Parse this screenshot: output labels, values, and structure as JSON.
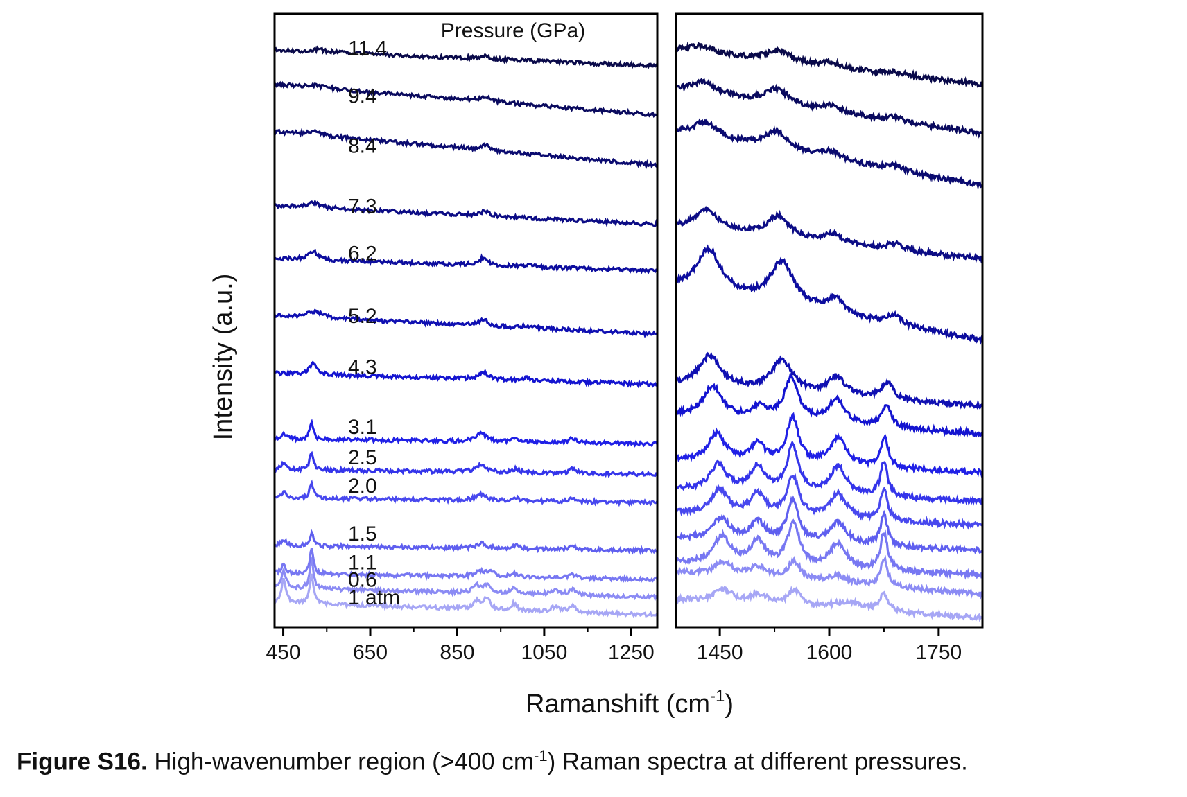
{
  "chart_data": {
    "type": "line",
    "xlabel_main": "Ramanshift (cm",
    "xlabel_sup": "-1",
    "xlabel_close": ")",
    "ylabel": "Intensity (a.u.)",
    "legend_title": "Pressure (GPa)",
    "left_panel": {
      "xlim": [
        430,
        1310
      ],
      "ticks": [
        "450",
        "650",
        "850",
        "1050",
        "1250"
      ],
      "tick_values": [
        450,
        650,
        850,
        1050,
        1250
      ]
    },
    "right_panel": {
      "xlim": [
        1390,
        1810
      ],
      "ticks": [
        "1450",
        "1600",
        "1750"
      ],
      "tick_values": [
        1450,
        1600,
        1750
      ]
    },
    "series": [
      {
        "name": "1 atm",
        "color": "#a6a6f5",
        "left_base": 0.98,
        "left_slope": 0.02,
        "right_base": 0.985,
        "right_slope": 0.03,
        "peaks_left": [
          [
            451,
            0.038,
            6
          ],
          [
            515,
            0.05,
            5
          ],
          [
            895,
            0.012,
            10
          ],
          [
            918,
            0.016,
            10
          ],
          [
            980,
            0.01,
            8
          ],
          [
            1075,
            0.008,
            10
          ],
          [
            1115,
            0.01,
            9
          ]
        ],
        "peaks_right": [
          [
            1455,
            0.02,
            15
          ],
          [
            1503,
            0.015,
            15
          ],
          [
            1552,
            0.026,
            10
          ],
          [
            1625,
            0.012,
            25
          ],
          [
            1675,
            0.03,
            6
          ]
        ]
      },
      {
        "name": "0.6",
        "color": "#8b8bf4",
        "left_base": 0.951,
        "left_slope": 0.015,
        "right_base": 0.946,
        "right_slope": 0.035,
        "peaks_left": [
          [
            451,
            0.03,
            6
          ],
          [
            515,
            0.05,
            5
          ],
          [
            895,
            0.012,
            10
          ],
          [
            918,
            0.012,
            10
          ],
          [
            980,
            0.01,
            8
          ],
          [
            1075,
            0.008,
            10
          ],
          [
            1115,
            0.01,
            9
          ]
        ],
        "peaks_right": [
          [
            1455,
            0.022,
            15
          ],
          [
            1503,
            0.017,
            15
          ],
          [
            1552,
            0.03,
            10
          ],
          [
            1612,
            0.012,
            18
          ],
          [
            1675,
            0.045,
            6
          ]
        ]
      },
      {
        "name": "1.1",
        "color": "#7777f2",
        "left_base": 0.922,
        "left_slope": 0.01,
        "right_base": 0.915,
        "right_slope": 0.02,
        "peaks_left": [
          [
            451,
            0.014,
            6
          ],
          [
            515,
            0.04,
            5
          ],
          [
            902,
            0.008,
            14
          ],
          [
            925,
            0.008,
            12
          ],
          [
            980,
            0.006,
            8
          ],
          [
            1115,
            0.006,
            9
          ]
        ],
        "peaks_right": [
          [
            1453,
            0.045,
            14
          ],
          [
            1502,
            0.04,
            12
          ],
          [
            1551,
            0.07,
            10
          ],
          [
            1612,
            0.04,
            14
          ],
          [
            1675,
            0.06,
            6
          ]
        ]
      },
      {
        "name": "1.5",
        "color": "#5f5fef",
        "left_base": 0.875,
        "left_slope": 0.008,
        "right_base": 0.875,
        "right_slope": 0.02,
        "peaks_left": [
          [
            451,
            0.01,
            6
          ],
          [
            515,
            0.022,
            5
          ],
          [
            905,
            0.008,
            14
          ],
          [
            985,
            0.005,
            8
          ],
          [
            1115,
            0.006,
            9
          ]
        ],
        "peaks_right": [
          [
            1452,
            0.035,
            14
          ],
          [
            1502,
            0.03,
            12
          ],
          [
            1550,
            0.065,
            10
          ],
          [
            1612,
            0.035,
            14
          ],
          [
            1675,
            0.05,
            6
          ]
        ]
      },
      {
        "name": "2.0",
        "color": "#4848ee",
        "left_base": 0.797,
        "left_slope": 0.008,
        "right_base": 0.834,
        "right_slope": 0.02,
        "peaks_left": [
          [
            451,
            0.01,
            6
          ],
          [
            515,
            0.026,
            5
          ],
          [
            905,
            0.01,
            14
          ],
          [
            985,
            0.005,
            8
          ],
          [
            1115,
            0.006,
            9
          ]
        ],
        "peaks_right": [
          [
            1450,
            0.04,
            14
          ],
          [
            1502,
            0.035,
            12
          ],
          [
            1550,
            0.065,
            10
          ],
          [
            1612,
            0.04,
            14
          ],
          [
            1675,
            0.05,
            6
          ]
        ]
      },
      {
        "name": "2.5",
        "color": "#3434ea",
        "left_base": 0.751,
        "left_slope": 0.008,
        "right_base": 0.795,
        "right_slope": 0.02,
        "peaks_left": [
          [
            451,
            0.012,
            6
          ],
          [
            515,
            0.03,
            5
          ],
          [
            905,
            0.012,
            14
          ],
          [
            985,
            0.006,
            8
          ],
          [
            1115,
            0.007,
            9
          ]
        ],
        "peaks_right": [
          [
            1448,
            0.042,
            14
          ],
          [
            1502,
            0.04,
            12
          ],
          [
            1550,
            0.075,
            10
          ],
          [
            1612,
            0.045,
            14
          ],
          [
            1675,
            0.055,
            6
          ]
        ]
      },
      {
        "name": "3.1",
        "color": "#2020e6",
        "left_base": 0.701,
        "left_slope": 0.008,
        "right_base": 0.748,
        "right_slope": 0.02,
        "peaks_left": [
          [
            451,
            0.01,
            6
          ],
          [
            515,
            0.026,
            5
          ],
          [
            905,
            0.014,
            14
          ],
          [
            985,
            0.006,
            8
          ],
          [
            1115,
            0.007,
            9
          ]
        ],
        "peaks_right": [
          [
            1446,
            0.045,
            14
          ],
          [
            1502,
            0.03,
            12
          ],
          [
            1550,
            0.075,
            10
          ],
          [
            1612,
            0.045,
            14
          ],
          [
            1676,
            0.05,
            6
          ]
        ]
      },
      {
        "name": "4.3",
        "color": "#1414d0",
        "left_base": 0.604,
        "left_slope": 0.018,
        "right_base": 0.685,
        "right_slope": 0.03,
        "peaks_left": [
          [
            518,
            0.018,
            10
          ],
          [
            910,
            0.012,
            12
          ],
          [
            1010,
            0.004,
            10
          ]
        ],
        "peaks_right": [
          [
            1440,
            0.05,
            16
          ],
          [
            1505,
            0.02,
            12
          ],
          [
            1548,
            0.07,
            12
          ],
          [
            1610,
            0.04,
            14
          ],
          [
            1678,
            0.035,
            8
          ]
        ]
      },
      {
        "name": "5.2",
        "color": "#1010b2",
        "left_base": 0.522,
        "left_slope": 0.03,
        "right_base": 0.64,
        "right_slope": 0.035,
        "peaks_left": [
          [
            520,
            0.01,
            20
          ],
          [
            910,
            0.01,
            12
          ],
          [
            1010,
            0.004,
            10
          ]
        ],
        "peaks_right": [
          [
            1436,
            0.05,
            18
          ],
          [
            1535,
            0.05,
            18
          ],
          [
            1610,
            0.03,
            14
          ],
          [
            1680,
            0.025,
            10
          ]
        ]
      },
      {
        "name": "6.2",
        "color": "#0d0d9e",
        "left_base": 0.419,
        "left_slope": 0.02,
        "right_base": 0.532,
        "right_slope": 0.085,
        "peaks_left": [
          [
            518,
            0.014,
            14
          ],
          [
            910,
            0.012,
            12
          ],
          [
            1015,
            0.004,
            12
          ]
        ],
        "peaks_right": [
          [
            1435,
            0.07,
            20
          ],
          [
            1535,
            0.07,
            20
          ],
          [
            1608,
            0.025,
            14
          ],
          [
            1688,
            0.015,
            12
          ]
        ]
      },
      {
        "name": "7.3",
        "color": "#0c0c85",
        "left_base": 0.343,
        "left_slope": 0.03,
        "right_base": 0.4,
        "right_slope": 0.05,
        "peaks_left": [
          [
            520,
            0.008,
            18
          ],
          [
            915,
            0.008,
            12
          ]
        ],
        "peaks_right": [
          [
            1432,
            0.035,
            20
          ],
          [
            1530,
            0.035,
            20
          ],
          [
            1605,
            0.015,
            16
          ],
          [
            1690,
            0.01,
            14
          ]
        ]
      },
      {
        "name": "8.4",
        "color": "#0b0b70",
        "left_base": 0.247,
        "left_slope": 0.055,
        "right_base": 0.28,
        "right_slope": 0.085,
        "peaks_left": [
          [
            520,
            0.006,
            18
          ],
          [
            915,
            0.008,
            12
          ]
        ],
        "peaks_right": [
          [
            1430,
            0.025,
            22
          ],
          [
            1528,
            0.03,
            20
          ],
          [
            1602,
            0.012,
            16
          ],
          [
            1690,
            0.008,
            14
          ]
        ]
      },
      {
        "name": "9.4",
        "color": "#0a0a5e",
        "left_base": 0.165,
        "left_slope": 0.05,
        "right_base": 0.195,
        "right_slope": 0.07,
        "peaks_left": [
          [
            525,
            0.004,
            20
          ],
          [
            915,
            0.008,
            14
          ]
        ],
        "peaks_right": [
          [
            1428,
            0.02,
            22
          ],
          [
            1528,
            0.025,
            20
          ],
          [
            1602,
            0.01,
            16
          ],
          [
            1690,
            0.006,
            14
          ]
        ]
      },
      {
        "name": "11.4",
        "color": "#0a0a4a",
        "left_base": 0.085,
        "left_slope": 0.026,
        "right_base": 0.115,
        "right_slope": 0.055,
        "peaks_left": [
          [
            530,
            0.004,
            20
          ],
          [
            915,
            0.004,
            14
          ]
        ],
        "peaks_right": [
          [
            1425,
            0.012,
            22
          ],
          [
            1530,
            0.018,
            20
          ],
          [
            1602,
            0.008,
            16
          ],
          [
            1690,
            0.004,
            14
          ]
        ]
      }
    ]
  },
  "caption": {
    "label": "Figure S16.",
    "text_before_sup": " High-wavenumber region (>400 cm",
    "sup": "-1",
    "text_after_sup": ") Raman spectra at different pressures."
  }
}
